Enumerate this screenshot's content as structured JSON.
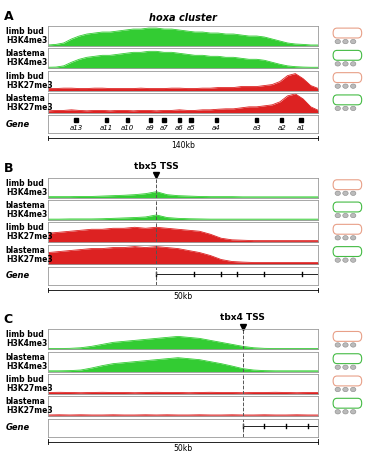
{
  "chart_data": [
    {
      "type": "area",
      "panel": "A",
      "title": "hoxa cluster",
      "tick_labels": false,
      "x": [
        0,
        4,
        8,
        12,
        16,
        20,
        24,
        28,
        32,
        36,
        40,
        44,
        48,
        52,
        56,
        60,
        64,
        68,
        72,
        76,
        80,
        84,
        88,
        92,
        96,
        100,
        104,
        108,
        112,
        116,
        120,
        124,
        128,
        132,
        136,
        140
      ],
      "xlim": [
        0,
        140
      ],
      "ylim": [
        0,
        1
      ],
      "series": [
        {
          "name": "limb bud\nH3K4me3",
          "color": "#33cc33",
          "values": [
            0.05,
            0.08,
            0.15,
            0.35,
            0.5,
            0.6,
            0.65,
            0.7,
            0.7,
            0.75,
            0.8,
            0.85,
            0.85,
            0.9,
            0.9,
            0.85,
            0.85,
            0.8,
            0.75,
            0.7,
            0.7,
            0.65,
            0.65,
            0.6,
            0.6,
            0.55,
            0.5,
            0.5,
            0.45,
            0.35,
            0.25,
            0.15,
            0.1,
            0.08,
            0.05,
            0.05
          ]
        },
        {
          "name": "blastema\nH3K4me3",
          "color": "#33cc33",
          "values": [
            0.05,
            0.06,
            0.12,
            0.3,
            0.45,
            0.55,
            0.6,
            0.65,
            0.65,
            0.7,
            0.75,
            0.8,
            0.8,
            0.85,
            0.85,
            0.8,
            0.8,
            0.75,
            0.7,
            0.65,
            0.65,
            0.6,
            0.6,
            0.55,
            0.55,
            0.5,
            0.45,
            0.45,
            0.4,
            0.3,
            0.2,
            0.12,
            0.08,
            0.06,
            0.05,
            0.05
          ]
        },
        {
          "name": "limb bud\nH3K27me3",
          "color": "#dd2222",
          "values": [
            0.1,
            0.1,
            0.12,
            0.12,
            0.1,
            0.1,
            0.12,
            0.12,
            0.1,
            0.1,
            0.1,
            0.1,
            0.12,
            0.1,
            0.1,
            0.1,
            0.12,
            0.12,
            0.1,
            0.1,
            0.12,
            0.12,
            0.15,
            0.15,
            0.15,
            0.2,
            0.2,
            0.2,
            0.25,
            0.3,
            0.45,
            0.75,
            0.85,
            0.6,
            0.25,
            0.1
          ]
        },
        {
          "name": "blastema\nH3K27me3",
          "color": "#dd2222",
          "values": [
            0.1,
            0.12,
            0.12,
            0.15,
            0.12,
            0.1,
            0.12,
            0.12,
            0.1,
            0.12,
            0.12,
            0.1,
            0.12,
            0.12,
            0.1,
            0.12,
            0.12,
            0.15,
            0.12,
            0.12,
            0.15,
            0.15,
            0.18,
            0.2,
            0.2,
            0.25,
            0.3,
            0.3,
            0.35,
            0.4,
            0.55,
            0.85,
            0.95,
            0.7,
            0.3,
            0.12
          ]
        }
      ],
      "gene_label": "Gene",
      "genes": [
        {
          "label": "a13",
          "position": 14.4
        },
        {
          "label": "a11",
          "position": 30
        },
        {
          "label": "a10",
          "position": 41
        },
        {
          "label": "a9",
          "position": 53
        },
        {
          "label": "a7",
          "position": 60
        },
        {
          "label": "a6",
          "position": 68
        },
        {
          "label": "a5",
          "position": 74
        },
        {
          "label": "a4",
          "position": 87
        },
        {
          "label": "a3",
          "position": 108
        },
        {
          "label": "a2",
          "position": 121
        },
        {
          "label": "a1",
          "position": 131
        }
      ],
      "scale_label": "140kb"
    },
    {
      "type": "area",
      "panel": "B",
      "title": "tbx5 TSS",
      "tick_labels": false,
      "x": [
        0,
        2,
        4,
        6,
        8,
        10,
        12,
        14,
        16,
        18,
        20,
        22,
        24,
        26,
        28,
        30,
        32,
        34,
        36,
        38,
        40,
        42,
        44,
        46,
        48,
        50
      ],
      "xlim": [
        0,
        50
      ],
      "ylim": [
        0,
        1
      ],
      "tss": 20,
      "series": [
        {
          "name": "limb bud\nH3K4me3",
          "color": "#33cc33",
          "values": [
            0.05,
            0.05,
            0.05,
            0.06,
            0.06,
            0.08,
            0.1,
            0.12,
            0.15,
            0.2,
            0.3,
            0.15,
            0.1,
            0.08,
            0.06,
            0.05,
            0.05,
            0.05,
            0.04,
            0.04,
            0.04,
            0.04,
            0.04,
            0.04,
            0.04,
            0.04
          ]
        },
        {
          "name": "blastema\nH3K4me3",
          "color": "#33cc33",
          "values": [
            0.04,
            0.04,
            0.05,
            0.05,
            0.05,
            0.06,
            0.08,
            0.1,
            0.12,
            0.15,
            0.25,
            0.12,
            0.08,
            0.06,
            0.05,
            0.04,
            0.04,
            0.04,
            0.04,
            0.04,
            0.04,
            0.04,
            0.04,
            0.04,
            0.04,
            0.04
          ]
        },
        {
          "name": "limb bud\nH3K27me3",
          "color": "#dd2222",
          "values": [
            0.45,
            0.5,
            0.55,
            0.6,
            0.65,
            0.65,
            0.7,
            0.7,
            0.75,
            0.7,
            0.75,
            0.7,
            0.65,
            0.6,
            0.55,
            0.4,
            0.2,
            0.12,
            0.1,
            0.08,
            0.08,
            0.08,
            0.08,
            0.08,
            0.08,
            0.08
          ]
        },
        {
          "name": "blastema\nH3K27me3",
          "color": "#dd2222",
          "values": [
            0.6,
            0.65,
            0.7,
            0.75,
            0.8,
            0.8,
            0.85,
            0.85,
            0.9,
            0.85,
            0.9,
            0.85,
            0.8,
            0.7,
            0.6,
            0.45,
            0.25,
            0.15,
            0.12,
            0.1,
            0.1,
            0.1,
            0.1,
            0.1,
            0.1,
            0.1
          ]
        }
      ],
      "gene_label": "Gene",
      "exons": [
        20,
        27,
        32,
        35,
        40,
        47
      ],
      "scale_label": "50kb"
    },
    {
      "type": "area",
      "panel": "C",
      "title": "tbx4 TSS",
      "tick_labels": false,
      "x": [
        0,
        2,
        4,
        6,
        8,
        10,
        12,
        14,
        16,
        18,
        20,
        22,
        24,
        26,
        28,
        30,
        32,
        34,
        36,
        38,
        40,
        42,
        44,
        46,
        48,
        50
      ],
      "xlim": [
        0,
        50
      ],
      "ylim": [
        0,
        1
      ],
      "tss": 36,
      "series": [
        {
          "name": "limb bud\nH3K4me3",
          "color": "#33cc33",
          "values": [
            0.04,
            0.04,
            0.05,
            0.08,
            0.15,
            0.25,
            0.35,
            0.4,
            0.45,
            0.5,
            0.55,
            0.6,
            0.65,
            0.6,
            0.55,
            0.45,
            0.35,
            0.25,
            0.15,
            0.08,
            0.05,
            0.04,
            0.04,
            0.04,
            0.04,
            0.04
          ]
        },
        {
          "name": "blastema\nH3K4me3",
          "color": "#33cc33",
          "values": [
            0.04,
            0.04,
            0.05,
            0.08,
            0.18,
            0.3,
            0.4,
            0.45,
            0.5,
            0.55,
            0.6,
            0.65,
            0.7,
            0.65,
            0.6,
            0.5,
            0.4,
            0.28,
            0.15,
            0.08,
            0.05,
            0.04,
            0.04,
            0.04,
            0.04,
            0.04
          ]
        },
        {
          "name": "limb bud\nH3K27me3",
          "color": "#dd2222",
          "values": [
            0.07,
            0.08,
            0.07,
            0.06,
            0.07,
            0.08,
            0.07,
            0.07,
            0.06,
            0.07,
            0.08,
            0.07,
            0.07,
            0.06,
            0.07,
            0.08,
            0.07,
            0.07,
            0.06,
            0.07,
            0.07,
            0.08,
            0.07,
            0.06,
            0.07,
            0.07
          ]
        },
        {
          "name": "blastema\nH3K27me3",
          "color": "#dd2222",
          "values": [
            0.06,
            0.07,
            0.06,
            0.07,
            0.06,
            0.06,
            0.07,
            0.06,
            0.06,
            0.07,
            0.06,
            0.07,
            0.06,
            0.06,
            0.07,
            0.06,
            0.06,
            0.07,
            0.06,
            0.06,
            0.07,
            0.06,
            0.06,
            0.07,
            0.06,
            0.06
          ]
        }
      ],
      "gene_label": "Gene",
      "exons": [
        36,
        40,
        44,
        48
      ],
      "scale_label": "50kb"
    }
  ]
}
